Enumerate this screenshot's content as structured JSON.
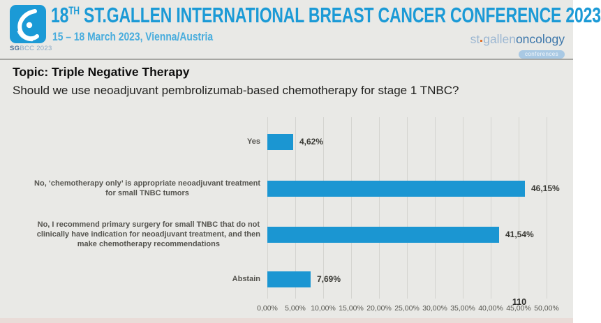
{
  "header": {
    "title_prefix": "18",
    "title_sup": "TH",
    "title_rest": " ST.GALLEN INTERNATIONAL BREAST CANCER CONFERENCE 2023",
    "subtitle": "15 – 18 March 2023, Vienna/Austria",
    "logo_sg": "SG",
    "logo_bcc": "BCC 2023",
    "brand_st": "st",
    "brand_gallen": "gallen",
    "brand_oncology": "oncology",
    "brand_conferences": "conferences"
  },
  "topic": "Topic: Triple Negative Therapy",
  "question": "Should we use neoadjuvant pembrolizumab-based chemotherapy for stage 1 TNBC?",
  "chart_data": {
    "type": "bar",
    "orientation": "horizontal",
    "title": "",
    "xlabel": "",
    "ylabel": "",
    "xlim": [
      0,
      50
    ],
    "grid": true,
    "bar_color": "#1b96d2",
    "categories": [
      "Yes",
      "No, 'chemotherapy only' is appropriate neoadjuvant treatment for small TNBC tumors",
      "No, I recommend primary surgery for small TNBC that do not clinically have indication for neoadjuvant treatment, and then make chemotherapy recommendations",
      "Abstain"
    ],
    "category_lines": [
      [
        "Yes"
      ],
      [
        "No, ‘chemotherapy only’ is appropriate neoadjuvant treatment",
        "for small TNBC tumors"
      ],
      [
        "No, I recommend primary surgery for small TNBC that do not",
        "clinically have indication for neoadjuvant treatment, and then",
        "make chemotherapy recommendations"
      ],
      [
        "Abstain"
      ]
    ],
    "values": [
      4.62,
      46.15,
      41.54,
      7.69
    ],
    "value_labels": [
      "4,62%",
      "46,15%",
      "41,54%",
      "7,69%"
    ],
    "x_ticks": [
      "0,00%",
      "5,00%",
      "10,00%",
      "15,00%",
      "20,00%",
      "25,00%",
      "30,00%",
      "35,00%",
      "40,00%",
      "45,00%",
      "50,00%"
    ],
    "respondents": "110"
  }
}
